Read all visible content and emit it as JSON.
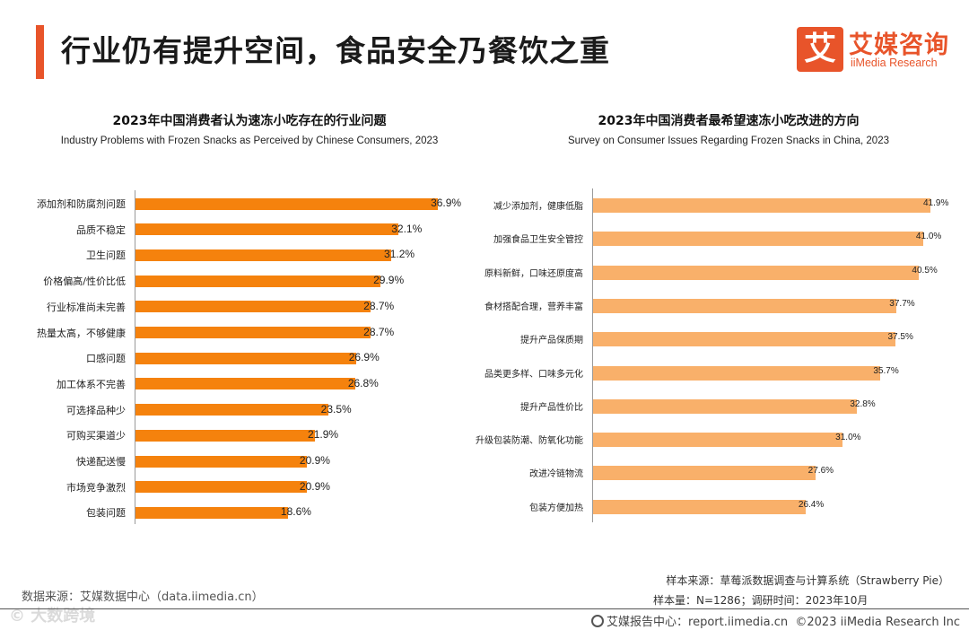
{
  "header": {
    "title": "行业仍有提升空间，食品安全乃餐饮之重",
    "logo_mark": "艾",
    "logo_cn": "艾媒咨询",
    "logo_en": "iiMedia Research"
  },
  "colors": {
    "accent": "#e8542a",
    "left_bar": "#f5820d",
    "right_bar": "#f9b06a"
  },
  "chart_data": [
    {
      "type": "bar",
      "orientation": "horizontal",
      "title": "2023年中国消费者认为速冻小吃存在的行业问题",
      "subtitle": "Industry Problems with Frozen Snacks as Perceived by Chinese Consumers, 2023",
      "categories": [
        "添加剂和防腐剂问题",
        "品质不稳定",
        "卫生问题",
        "价格偏高/性价比低",
        "行业标准尚未完善",
        "热量太高，不够健康",
        "口感问题",
        "加工体系不完善",
        "可选择品种少",
        "可购买渠道少",
        "快递配送慢",
        "市场竞争激烈",
        "包装问题"
      ],
      "values": [
        36.9,
        32.1,
        31.2,
        29.9,
        28.7,
        28.7,
        26.9,
        26.8,
        23.5,
        21.9,
        20.9,
        20.9,
        18.6
      ],
      "labels": [
        "36.9%",
        "32.1%",
        "31.2%",
        "29.9%",
        "28.7%",
        "28.7%",
        "26.9%",
        "26.8%",
        "23.5%",
        "21.9%",
        "20.9%",
        "20.9%",
        "18.6%"
      ],
      "unit": "%",
      "xlim": [
        0,
        37
      ]
    },
    {
      "type": "bar",
      "orientation": "horizontal",
      "title": "2023年中国消费者最希望速冻小吃改进的方向",
      "subtitle": "Survey on Consumer Issues Regarding Frozen Snacks in China, 2023",
      "categories": [
        "减少添加剂，健康低脂",
        "加强食品卫生安全管控",
        "原料新鲜，口味还原度高",
        "食材搭配合理，营养丰富",
        "提升产品保质期",
        "品类更多样、口味多元化",
        "提升产品性价比",
        "升级包装防潮、防氧化功能",
        "改进冷链物流",
        "包装方便加热"
      ],
      "values": [
        41.9,
        41.0,
        40.5,
        37.7,
        37.5,
        35.7,
        32.8,
        31.0,
        27.6,
        26.4
      ],
      "labels": [
        "41.9%",
        "41.0%",
        "40.5%",
        "37.7%",
        "37.5%",
        "35.7%",
        "32.8%",
        "31.0%",
        "27.6%",
        "26.4%"
      ],
      "unit": "%",
      "xlim": [
        0,
        41.9
      ]
    }
  ],
  "footer": {
    "data_source": "数据来源：艾媒数据中心（data.iimedia.cn）",
    "sample_source": "样本来源：草莓派数据调查与计算系统（Strawberry Pie）",
    "sample_size": "样本量：N=1286；调研时间：2023年10月",
    "report_center": "艾媒报告中心：report.iimedia.cn",
    "copyright": "©2023  iiMedia Research  Inc",
    "watermark": "© 大数跨境"
  }
}
